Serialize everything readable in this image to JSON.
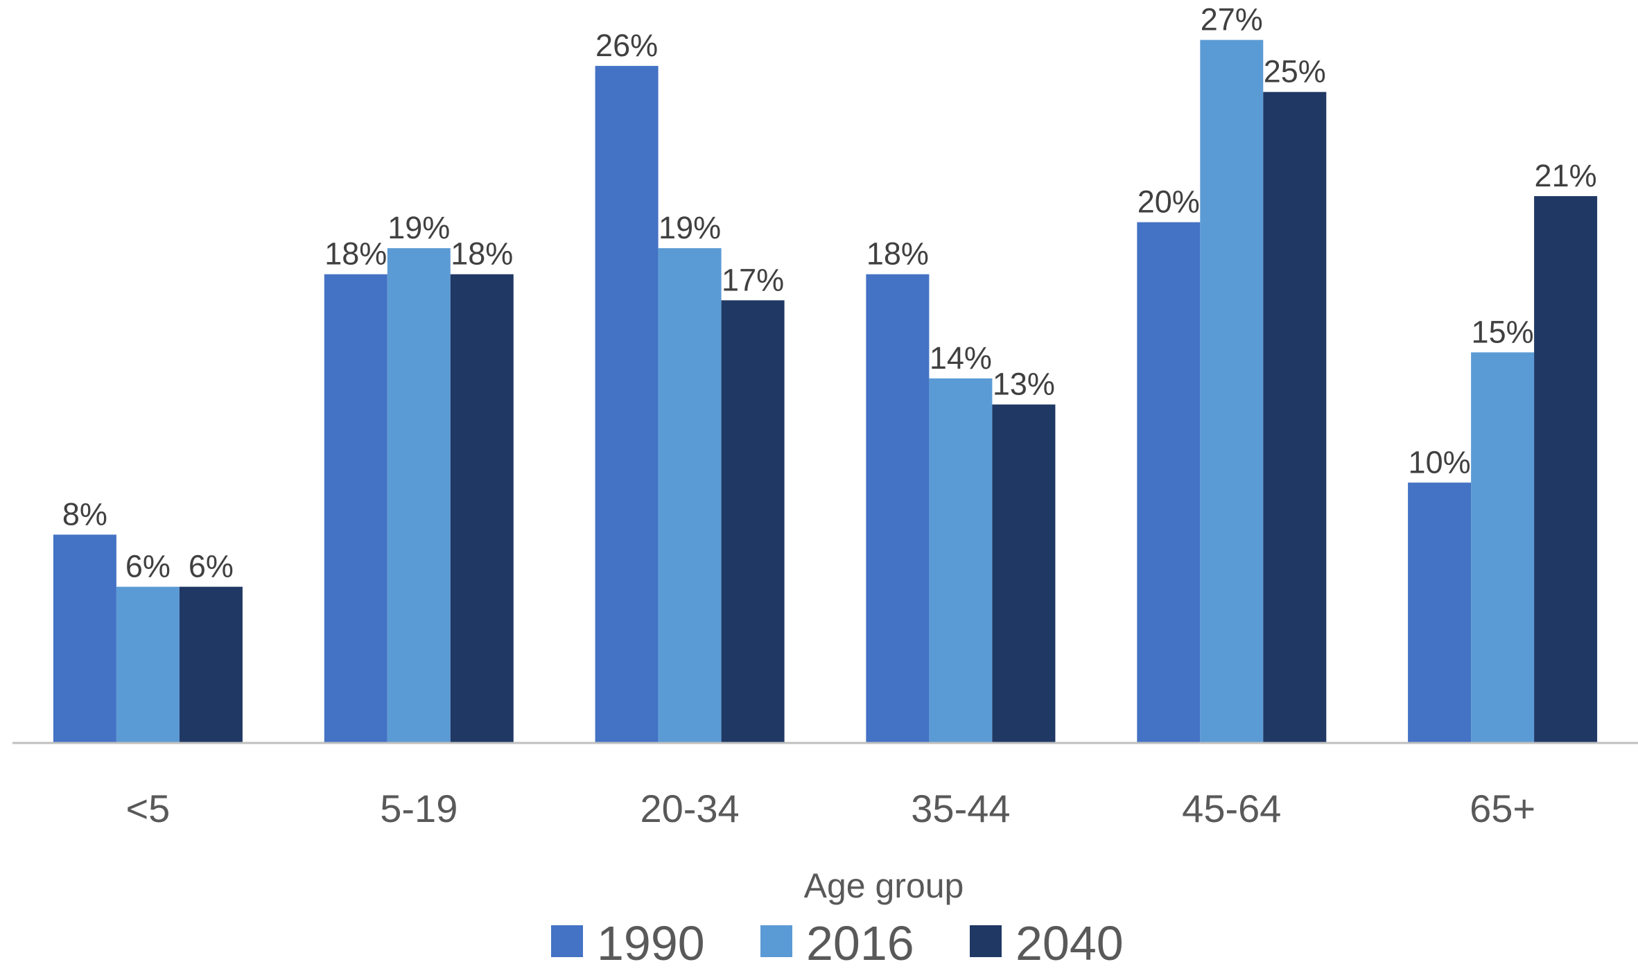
{
  "chart_data": {
    "type": "bar",
    "title": "",
    "xlabel": "Age group",
    "ylabel": "",
    "categories": [
      "<5",
      "5-19",
      "20-34",
      "35-44",
      "45-64",
      "65+"
    ],
    "series": [
      {
        "name": "1990",
        "color": "#4472C4",
        "values": [
          8,
          18,
          26,
          18,
          20,
          10
        ],
        "labels": [
          "8%",
          "18%",
          "26%",
          "18%",
          "20%",
          "10%"
        ]
      },
      {
        "name": "2016",
        "color": "#5B9BD5",
        "values": [
          6,
          19,
          19,
          14,
          27,
          15
        ],
        "labels": [
          "6%",
          "19%",
          "19%",
          "14%",
          "27%",
          "15%"
        ]
      },
      {
        "name": "2040",
        "color": "#203864",
        "values": [
          6,
          18,
          17,
          13,
          25,
          21
        ],
        "labels": [
          "6%",
          "18%",
          "17%",
          "13%",
          "25%",
          "21%"
        ]
      }
    ],
    "value_format": "percent",
    "ylim": [
      0,
      28
    ],
    "grid": false,
    "legend_position": "bottom"
  }
}
